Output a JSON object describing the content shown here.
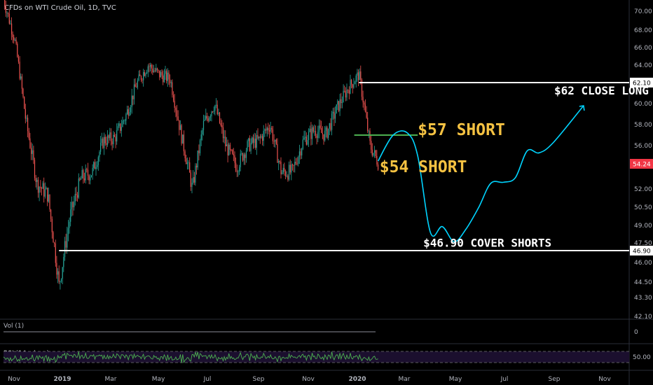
{
  "header": {
    "title": "CFDs on WTI Crude Oil, 1D, TVC"
  },
  "volume_pane": {
    "label": "Vol (1)",
    "value_tick": "0"
  },
  "rsi_pane": {
    "label": "RSI (14, close)",
    "value_tick": "50.00"
  },
  "colors": {
    "background": "#000000",
    "up": "#26a69a",
    "down": "#ef5350",
    "projection": "#00d4ff",
    "level_line": "#ffffff",
    "short57_line": "#4caf50",
    "annotation_gold": "#f5c242",
    "annotation_white": "#ffffff",
    "rsi_line": "#4caf50",
    "rsi_band": "#1b0f2e",
    "axis_text": "#b2b5be",
    "price_tag": "#f23645"
  },
  "chart_data": {
    "type": "candlestick",
    "title": "CFDs on WTI Crude Oil, 1D, TVC",
    "x_tick_labels": [
      "Nov",
      "2019",
      "Mar",
      "May",
      "Jul",
      "Sep",
      "Nov",
      "2020",
      "Mar",
      "May",
      "Jul",
      "Sep",
      "Nov"
    ],
    "y_tick_labels": [
      "70.00",
      "68.00",
      "66.00",
      "64.00",
      "60.00",
      "58.00",
      "56.00",
      "52.00",
      "50.50",
      "49.00",
      "47.50",
      "46.00",
      "44.50",
      "43.30",
      "42.10"
    ],
    "ylim": [
      42.1,
      70.0
    ],
    "grid": false,
    "price_series": [
      [
        "2018-10-15",
        71.3
      ],
      [
        "2018-10-29",
        67.0
      ],
      [
        "2018-11-12",
        58.5
      ],
      [
        "2018-11-26",
        52.5
      ],
      [
        "2018-12-10",
        51.5
      ],
      [
        "2018-12-24",
        44.2
      ],
      [
        "2019-01-07",
        49.8
      ],
      [
        "2019-01-21",
        53.0
      ],
      [
        "2019-02-04",
        53.5
      ],
      [
        "2019-02-18",
        56.5
      ],
      [
        "2019-03-04",
        56.7
      ],
      [
        "2019-03-18",
        58.8
      ],
      [
        "2019-04-01",
        62.0
      ],
      [
        "2019-04-15",
        64.0
      ],
      [
        "2019-04-29",
        63.0
      ],
      [
        "2019-05-13",
        62.5
      ],
      [
        "2019-05-27",
        57.0
      ],
      [
        "2019-06-10",
        52.0
      ],
      [
        "2019-06-24",
        58.0
      ],
      [
        "2019-07-08",
        60.0
      ],
      [
        "2019-07-22",
        56.0
      ],
      [
        "2019-08-05",
        54.0
      ],
      [
        "2019-08-19",
        56.0
      ],
      [
        "2019-09-02",
        56.5
      ],
      [
        "2019-09-16",
        58.0
      ],
      [
        "2019-09-30",
        53.5
      ],
      [
        "2019-10-14",
        53.5
      ],
      [
        "2019-10-28",
        56.5
      ],
      [
        "2019-11-11",
        57.5
      ],
      [
        "2019-11-25",
        57.0
      ],
      [
        "2019-12-09",
        59.5
      ],
      [
        "2019-12-23",
        61.5
      ],
      [
        "2020-01-06",
        63.0
      ],
      [
        "2020-01-20",
        56.0
      ],
      [
        "2020-01-31",
        54.24
      ]
    ],
    "last_price": {
      "value": 54.24,
      "label": "54.24"
    },
    "levels": [
      {
        "name": "close-long-level",
        "value": 62.1,
        "label": "62.10",
        "from": "2020-01-06"
      },
      {
        "name": "cover-shorts-level",
        "value": 46.9,
        "label": "46.90",
        "from": "2018-12-24"
      },
      {
        "name": "short-57-level",
        "value": 57.0,
        "from": "2019-12-31",
        "to": "2020-03-20"
      }
    ],
    "projection": [
      [
        "2020-01-30",
        54.5
      ],
      [
        "2020-02-18",
        57.0
      ],
      [
        "2020-03-07",
        57.2
      ],
      [
        "2020-03-20",
        55.0
      ],
      [
        "2020-04-05",
        48.4
      ],
      [
        "2020-04-20",
        48.9
      ],
      [
        "2020-05-05",
        47.6
      ],
      [
        "2020-05-20",
        48.7
      ],
      [
        "2020-06-05",
        50.5
      ],
      [
        "2020-06-20",
        52.5
      ],
      [
        "2020-07-06",
        52.6
      ],
      [
        "2020-07-21",
        53.0
      ],
      [
        "2020-08-05",
        55.5
      ],
      [
        "2020-08-20",
        55.3
      ],
      [
        "2020-09-07",
        56.3
      ],
      [
        "2020-10-15",
        59.8
      ]
    ],
    "annotations": [
      {
        "text": "$62 CLOSE LONG",
        "x": "2020-09-08",
        "y": 60.9,
        "style": "white"
      },
      {
        "text": "$57 SHORT",
        "x": "2020-03-20",
        "y": 57.0,
        "style": "gold"
      },
      {
        "text": "$54 SHORT",
        "x": "2020-02-01",
        "y": 53.5,
        "style": "gold"
      },
      {
        "text": "$46.90 COVER SHORTS",
        "x": "2020-03-27",
        "y": 47.2,
        "style": "white"
      }
    ]
  }
}
